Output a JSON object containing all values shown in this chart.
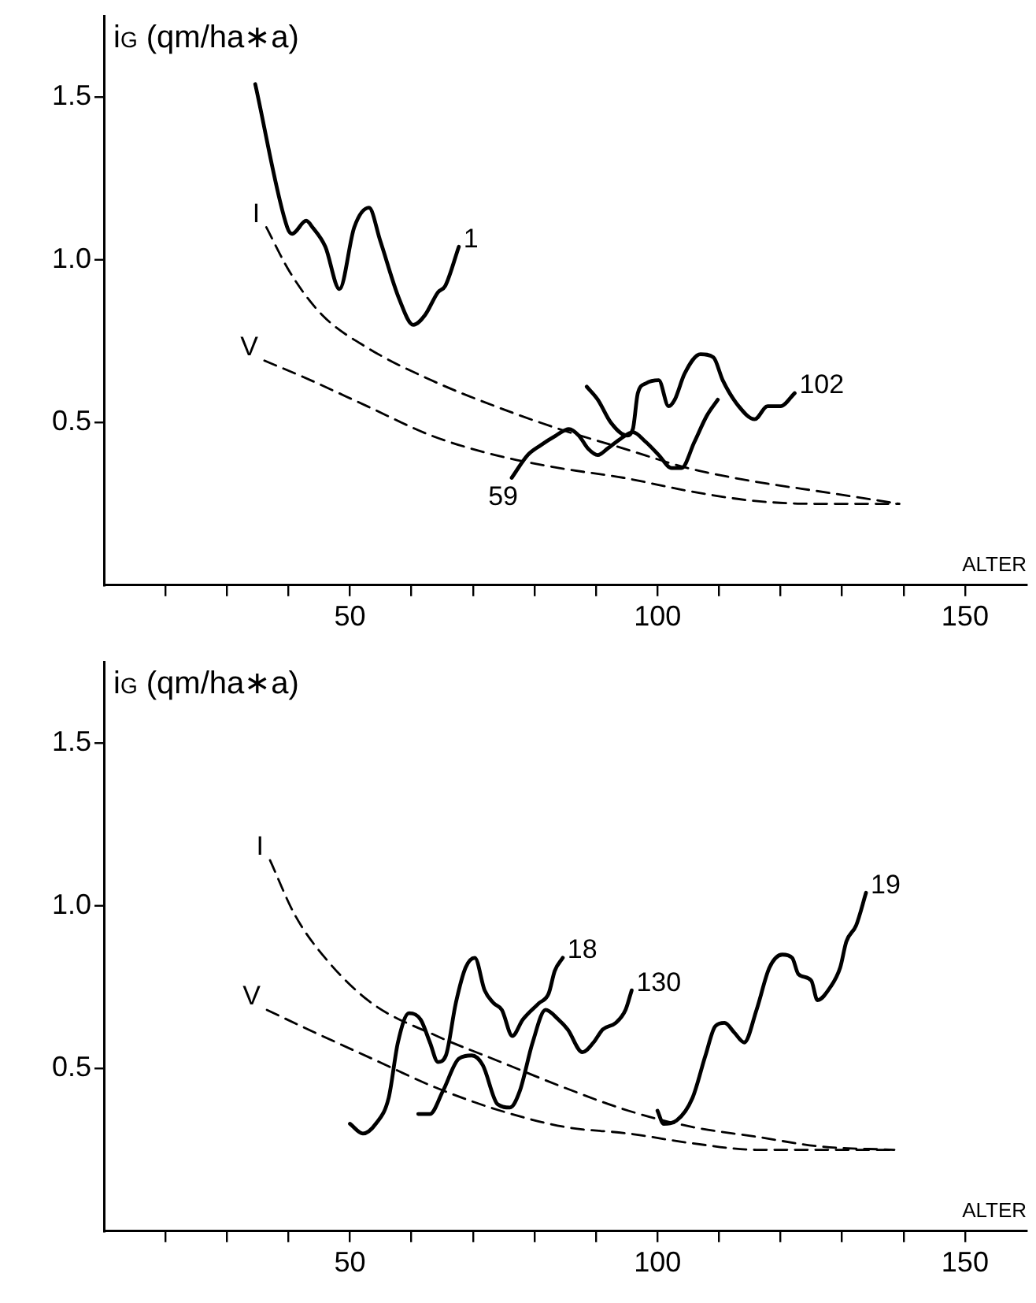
{
  "chart_data": [
    {
      "type": "line",
      "xlabel": "ALTER",
      "ylabel": "i$_{G}$ (qm/ha∗a)",
      "xlim": [
        10,
        160
      ],
      "ylim": [
        0,
        1.75
      ],
      "xticks": [
        {
          "value": 20,
          "label": null
        },
        {
          "value": 30,
          "label": null
        },
        {
          "value": 40,
          "label": null
        },
        50,
        {
          "value": 60,
          "label": null
        },
        {
          "value": 70,
          "label": null
        },
        {
          "value": 80,
          "label": null
        },
        {
          "value": 90,
          "label": null
        },
        100,
        {
          "value": 110,
          "label": null
        },
        {
          "value": 120,
          "label": null
        },
        {
          "value": 130,
          "label": null
        },
        {
          "value": 140,
          "label": null
        },
        150
      ],
      "yticks": [
        {
          "value": 0.5,
          "label": "0.5"
        },
        {
          "value": 1,
          "label": "1.0"
        },
        {
          "value": 1.5,
          "label": "1.5"
        }
      ],
      "grid": false,
      "legend": false,
      "marker": "none",
      "series": [
        {
          "name": "I",
          "color": "#000000",
          "line_style": "dashed",
          "x": [
            36.4,
            40.3,
            45.5,
            52.8,
            63.2,
            73.6,
            84,
            94.5,
            104.9,
            115.3,
            125.7,
            139.3
          ],
          "values": [
            1.1,
            0.96,
            0.83,
            0.73,
            0.63,
            0.55,
            0.48,
            0.42,
            0.36,
            0.32,
            0.29,
            0.25
          ]
        },
        {
          "name": "V",
          "color": "#000000",
          "line_style": "dashed",
          "x": [
            36.1,
            42.4,
            52.8,
            63.2,
            73.6,
            84,
            94.5,
            104.9,
            115.3,
            125.7,
            139.3
          ],
          "values": [
            0.69,
            0.64,
            0.55,
            0.46,
            0.4,
            0.36,
            0.33,
            0.29,
            0.26,
            0.25,
            0.25
          ]
        },
        {
          "name": "1",
          "color": "#000000",
          "line_style": "solid",
          "x": [
            34.6,
            39.8,
            40.6,
            42.9,
            43.9,
            46,
            48.3,
            50.7,
            53.1,
            54.9,
            58,
            60.3,
            62.2,
            64.3,
            65.5,
            67.7
          ],
          "values": [
            1.54,
            1.1,
            1.08,
            1.12,
            1.1,
            1.04,
            0.91,
            1.1,
            1.16,
            1.06,
            0.88,
            0.8,
            0.83,
            0.9,
            0.92,
            1.04
          ]
        },
        {
          "name": "59",
          "color": "#000000",
          "line_style": "solid",
          "x": [
            76.3,
            78.9,
            81,
            83.5,
            85.6,
            87.2,
            88.7,
            90.3,
            91.9,
            94,
            96,
            98.1,
            100.2,
            102.3,
            103.9,
            106,
            108,
            109.8
          ],
          "values": [
            0.33,
            0.4,
            0.43,
            0.46,
            0.48,
            0.46,
            0.42,
            0.4,
            0.42,
            0.45,
            0.47,
            0.44,
            0.4,
            0.36,
            0.36,
            0.44,
            0.52,
            0.57
          ]
        },
        {
          "name": "102",
          "color": "#000000",
          "line_style": "solid",
          "x": [
            88.5,
            90.3,
            92.4,
            95,
            96,
            96.8,
            98.1,
            100.2,
            101.8,
            102.8,
            104.4,
            107,
            109.1,
            110.6,
            113.2,
            115.8,
            117.9,
            120,
            122.3
          ],
          "values": [
            0.61,
            0.57,
            0.5,
            0.46,
            0.48,
            0.59,
            0.62,
            0.63,
            0.55,
            0.57,
            0.65,
            0.71,
            0.7,
            0.63,
            0.55,
            0.51,
            0.55,
            0.55,
            0.59
          ]
        }
      ]
    },
    {
      "type": "line",
      "xlabel": "ALTER",
      "ylabel": "i$_{G}$ (qm/ha∗a)",
      "xlim": [
        10,
        160
      ],
      "ylim": [
        0,
        1.75
      ],
      "xticks": [
        {
          "value": 20,
          "label": null
        },
        {
          "value": 30,
          "label": null
        },
        {
          "value": 40,
          "label": null
        },
        50,
        {
          "value": 60,
          "label": null
        },
        {
          "value": 70,
          "label": null
        },
        {
          "value": 80,
          "label": null
        },
        {
          "value": 90,
          "label": null
        },
        100,
        {
          "value": 110,
          "label": null
        },
        {
          "value": 120,
          "label": null
        },
        {
          "value": 130,
          "label": null
        },
        {
          "value": 140,
          "label": null
        },
        150
      ],
      "yticks": [
        {
          "value": 0.5,
          "label": "0.5"
        },
        {
          "value": 1,
          "label": "1.0"
        },
        {
          "value": 1.5,
          "label": "1.5"
        }
      ],
      "grid": false,
      "legend": false,
      "marker": "none",
      "series": [
        {
          "name": "I",
          "color": "#000000",
          "line_style": "dashed",
          "x": [
            37,
            41.1,
            46.4,
            53.6,
            64.1,
            74.5,
            85,
            95.3,
            105.7,
            116.1,
            126.6,
            138.5
          ],
          "values": [
            1.14,
            0.97,
            0.83,
            0.7,
            0.6,
            0.52,
            0.44,
            0.37,
            0.32,
            0.29,
            0.26,
            0.25
          ]
        },
        {
          "name": "V",
          "color": "#000000",
          "line_style": "dashed",
          "x": [
            36.5,
            43.2,
            53.6,
            64.1,
            74.5,
            85,
            95.3,
            105.7,
            116.1,
            126.6,
            138.5
          ],
          "values": [
            0.68,
            0.62,
            0.53,
            0.44,
            0.37,
            0.32,
            0.3,
            0.27,
            0.25,
            0.25,
            0.25
          ]
        },
        {
          "name": "18",
          "color": "#000000",
          "line_style": "solid",
          "x": [
            50,
            52.1,
            54.2,
            56.3,
            57.8,
            59.6,
            61.5,
            63,
            64.3,
            65.6,
            67.2,
            68.8,
            70.3,
            71.9,
            73.4,
            74.7,
            76.4,
            78.1,
            80.7,
            82.3,
            83.3,
            84.6
          ],
          "values": [
            0.33,
            0.3,
            0.33,
            0.41,
            0.58,
            0.67,
            0.65,
            0.58,
            0.52,
            0.54,
            0.7,
            0.81,
            0.84,
            0.74,
            0.7,
            0.68,
            0.6,
            0.65,
            0.7,
            0.73,
            0.8,
            0.84
          ]
        },
        {
          "name": "130",
          "color": "#000000",
          "line_style": "solid",
          "x": [
            61.1,
            63,
            65.1,
            67.7,
            69.8,
            71.6,
            74,
            76,
            77.6,
            79.7,
            81.8,
            83.9,
            85.4,
            87.8,
            89.6,
            91.1,
            93.2,
            94.8,
            95.8
          ],
          "values": [
            0.36,
            0.36,
            0.43,
            0.53,
            0.54,
            0.51,
            0.39,
            0.38,
            0.43,
            0.58,
            0.68,
            0.65,
            0.62,
            0.55,
            0.58,
            0.62,
            0.64,
            0.68,
            0.74
          ]
        },
        {
          "name": "19",
          "color": "#000000",
          "line_style": "solid",
          "x": [
            100,
            101,
            103.1,
            105.7,
            107.8,
            109.4,
            110.9,
            112.5,
            114.1,
            116.1,
            118.2,
            120.3,
            121.9,
            122.9,
            125,
            126,
            128.1,
            129.7,
            130.7,
            132.3,
            133.9
          ],
          "values": [
            0.37,
            0.33,
            0.34,
            0.41,
            0.54,
            0.63,
            0.64,
            0.61,
            0.58,
            0.68,
            0.81,
            0.85,
            0.84,
            0.79,
            0.77,
            0.71,
            0.75,
            0.81,
            0.89,
            0.94,
            1.04
          ]
        }
      ]
    }
  ]
}
